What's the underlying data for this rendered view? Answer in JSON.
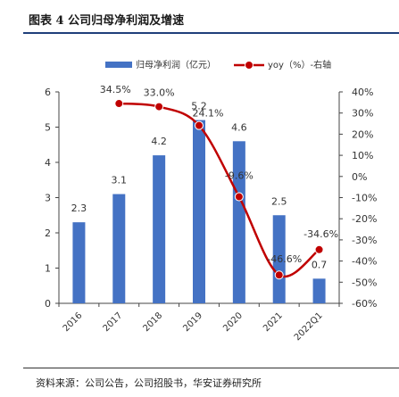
{
  "header": {
    "title": "图表 4 公司归母净利润及增速"
  },
  "footer": {
    "source": "资料来源：公司公告，公司招股书，华安证券研究所"
  },
  "colors": {
    "bar": "#4472c4",
    "line": "#c00000",
    "axis": "#444444",
    "text": "#333333"
  },
  "chart_data": {
    "type": "bar",
    "categories": [
      "2016",
      "2017",
      "2018",
      "2019",
      "2020",
      "2021",
      "2022Q1"
    ],
    "series": [
      {
        "name": "归母净利润（亿元）",
        "type": "bar",
        "axis": "left",
        "values": [
          2.3,
          3.1,
          4.2,
          5.2,
          4.6,
          2.5,
          0.7
        ]
      },
      {
        "name": "yoy（%）-右轴",
        "type": "line",
        "axis": "right",
        "values": [
          null,
          34.5,
          33.0,
          24.1,
          -9.6,
          -46.6,
          -34.6
        ],
        "labels": [
          "",
          "34.5%",
          "33.0%",
          "24.1%",
          "-9.6%",
          "-46.6%",
          "-34.6%"
        ]
      }
    ],
    "bar_labels": [
      "2.3",
      "3.1",
      "4.2",
      "5.2",
      "4.6",
      "2.5",
      "0.7"
    ],
    "left_ticks": [
      "0",
      "1",
      "2",
      "3",
      "4",
      "5",
      "6"
    ],
    "right_ticks": [
      "40%",
      "30%",
      "20%",
      "10%",
      "0%",
      "-10%",
      "-20%",
      "-30%",
      "-40%",
      "-50%",
      "-60%"
    ],
    "ylim_left": [
      0,
      6
    ],
    "ylim_right": [
      -60,
      40
    ],
    "grid": false,
    "legend": "top"
  }
}
